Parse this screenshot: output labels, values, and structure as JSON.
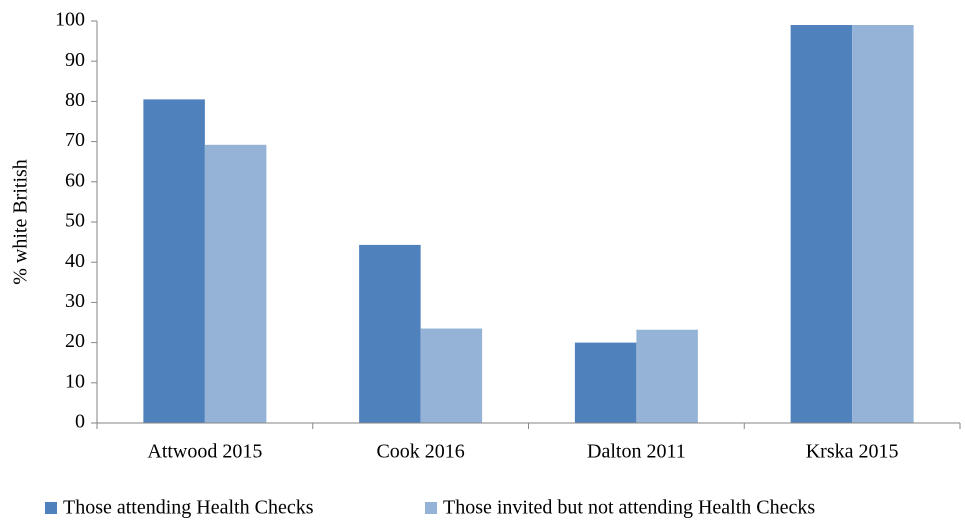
{
  "chart_data": {
    "type": "bar",
    "y_label": "% white British",
    "categories": [
      "Attwood 2015",
      "Cook 2016",
      "Dalton 2011",
      "Krska 2015"
    ],
    "series": [
      {
        "name": "Those attending Health Checks",
        "color": "#4f81bd",
        "values": [
          80.5,
          44.3,
          20,
          99
        ]
      },
      {
        "name": "Those invited but not attending Health Checks",
        "color": "#95b3d7",
        "values": [
          69.2,
          23.5,
          23.2,
          99
        ]
      }
    ],
    "ylim": [
      0,
      100
    ],
    "yticks": [
      0,
      10,
      20,
      30,
      40,
      50,
      60,
      70,
      80,
      90,
      100
    ],
    "grid": false,
    "legend": "bottom"
  }
}
